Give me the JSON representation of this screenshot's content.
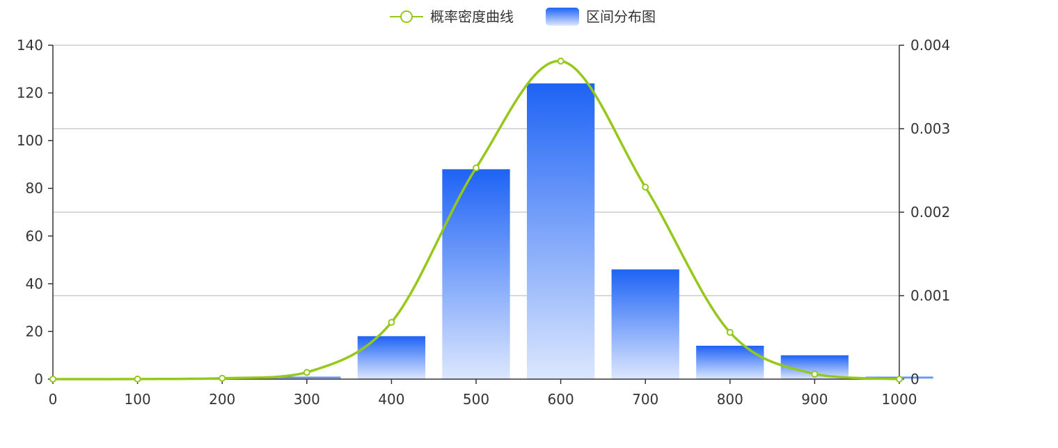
{
  "chart_data": {
    "type": "bar",
    "title": "",
    "legend": {
      "placement": "top-center",
      "entries": [
        "概率密度曲线",
        "区间分布图"
      ]
    },
    "x_axis": {
      "range": [
        0,
        1000
      ],
      "ticks": [
        "0",
        "100",
        "200",
        "300",
        "400",
        "500",
        "600",
        "700",
        "800",
        "900",
        "1000"
      ]
    },
    "y_left": {
      "range": [
        0,
        140
      ],
      "ticks": [
        "0",
        "20",
        "40",
        "60",
        "80",
        "100",
        "120",
        "140"
      ]
    },
    "y_right": {
      "range": [
        0,
        0.004
      ],
      "ticks": [
        "0",
        "0.001",
        "0.002",
        "0.003",
        "0.004"
      ]
    },
    "grid": true,
    "series": [
      {
        "name": "区间分布图",
        "type": "bar",
        "y_axis": "left",
        "bins": [
          {
            "center": 200,
            "value": 0
          },
          {
            "center": 300,
            "value": 1
          },
          {
            "center": 400,
            "value": 18
          },
          {
            "center": 500,
            "value": 88
          },
          {
            "center": 600,
            "value": 124
          },
          {
            "center": 700,
            "value": 46
          },
          {
            "center": 800,
            "value": 14
          },
          {
            "center": 900,
            "value": 10
          },
          {
            "center": 1000,
            "value": 1
          }
        ],
        "bin_width": 80,
        "color_top": "#1e63f5",
        "color_bottom": "#dce7fe"
      },
      {
        "name": "概率密度曲线",
        "type": "line",
        "smooth": true,
        "y_axis": "right",
        "points": [
          {
            "x": 0,
            "y": 0
          },
          {
            "x": 100,
            "y": 1e-06
          },
          {
            "x": 200,
            "y": 1e-05
          },
          {
            "x": 300,
            "y": 8e-05
          },
          {
            "x": 400,
            "y": 0.00068
          },
          {
            "x": 500,
            "y": 0.00253
          },
          {
            "x": 600,
            "y": 0.00381
          },
          {
            "x": 700,
            "y": 0.0023
          },
          {
            "x": 800,
            "y": 0.00056
          },
          {
            "x": 900,
            "y": 6e-05
          },
          {
            "x": 1000,
            "y": 0
          }
        ],
        "color": "#96c81b"
      }
    ]
  }
}
